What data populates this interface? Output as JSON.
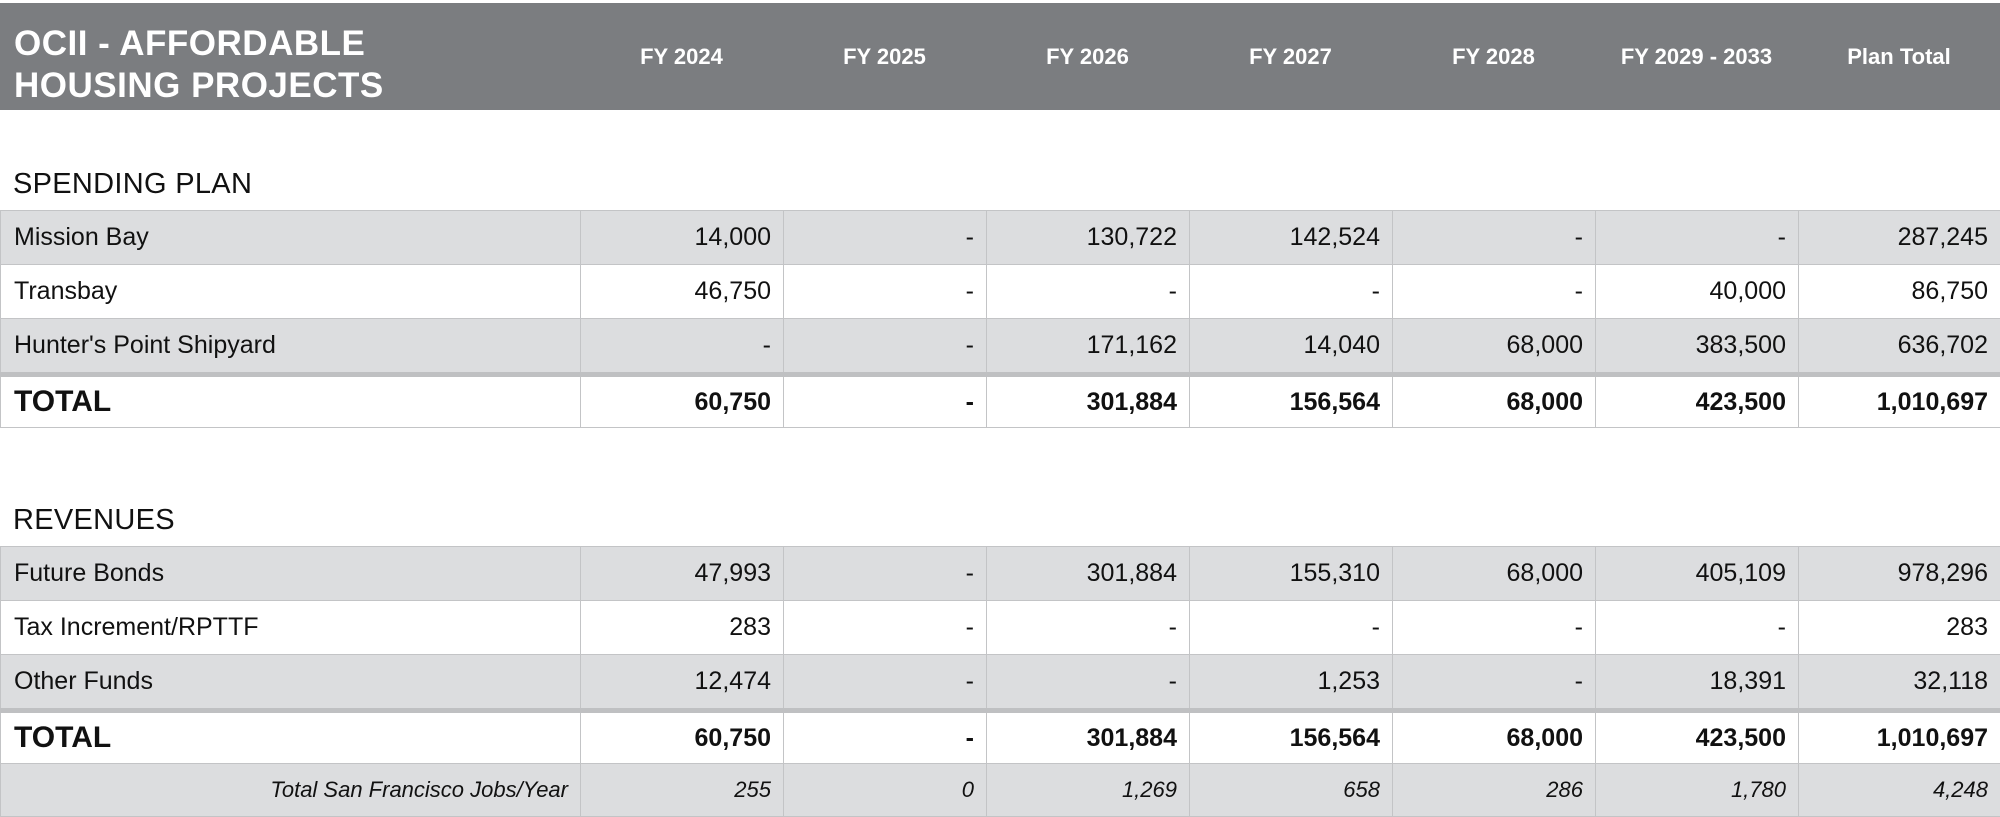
{
  "header": {
    "title_line1": "OCII - AFFORDABLE",
    "title_line2": "HOUSING PROJECTS",
    "columns": [
      "FY 2024",
      "FY 2025",
      "FY 2026",
      "FY 2027",
      "FY 2028",
      "FY 2029 - 2033",
      "Plan Total"
    ]
  },
  "spending": {
    "title": "SPENDING PLAN",
    "rows": [
      {
        "label": "Mission Bay",
        "values": [
          "14,000",
          "-",
          "130,722",
          "142,524",
          "-",
          "-",
          "287,245"
        ]
      },
      {
        "label": "Transbay",
        "values": [
          "46,750",
          "-",
          "-",
          "-",
          "-",
          "40,000",
          "86,750"
        ]
      },
      {
        "label": "Hunter's Point Shipyard",
        "values": [
          "-",
          "-",
          "171,162",
          "14,040",
          "68,000",
          "383,500",
          "636,702"
        ]
      }
    ],
    "total": {
      "label": "TOTAL",
      "values": [
        "60,750",
        "-",
        "301,884",
        "156,564",
        "68,000",
        "423,500",
        "1,010,697"
      ]
    }
  },
  "revenues": {
    "title": "REVENUES",
    "rows": [
      {
        "label": "Future Bonds",
        "values": [
          "47,993",
          "-",
          "301,884",
          "155,310",
          "68,000",
          "405,109",
          "978,296"
        ]
      },
      {
        "label": "Tax Increment/RPTTF",
        "values": [
          "283",
          "-",
          "-",
          "-",
          "-",
          "-",
          "283"
        ]
      },
      {
        "label": "Other Funds",
        "values": [
          "12,474",
          "-",
          "-",
          "1,253",
          "-",
          "18,391",
          "32,118"
        ]
      }
    ],
    "total": {
      "label": "TOTAL",
      "values": [
        "60,750",
        "-",
        "301,884",
        "156,564",
        "68,000",
        "423,500",
        "1,010,697"
      ]
    },
    "jobs": {
      "label": "Total San Francisco Jobs/Year",
      "values": [
        "255",
        "0",
        "1,269",
        "658",
        "286",
        "1,780",
        "4,248"
      ]
    }
  }
}
